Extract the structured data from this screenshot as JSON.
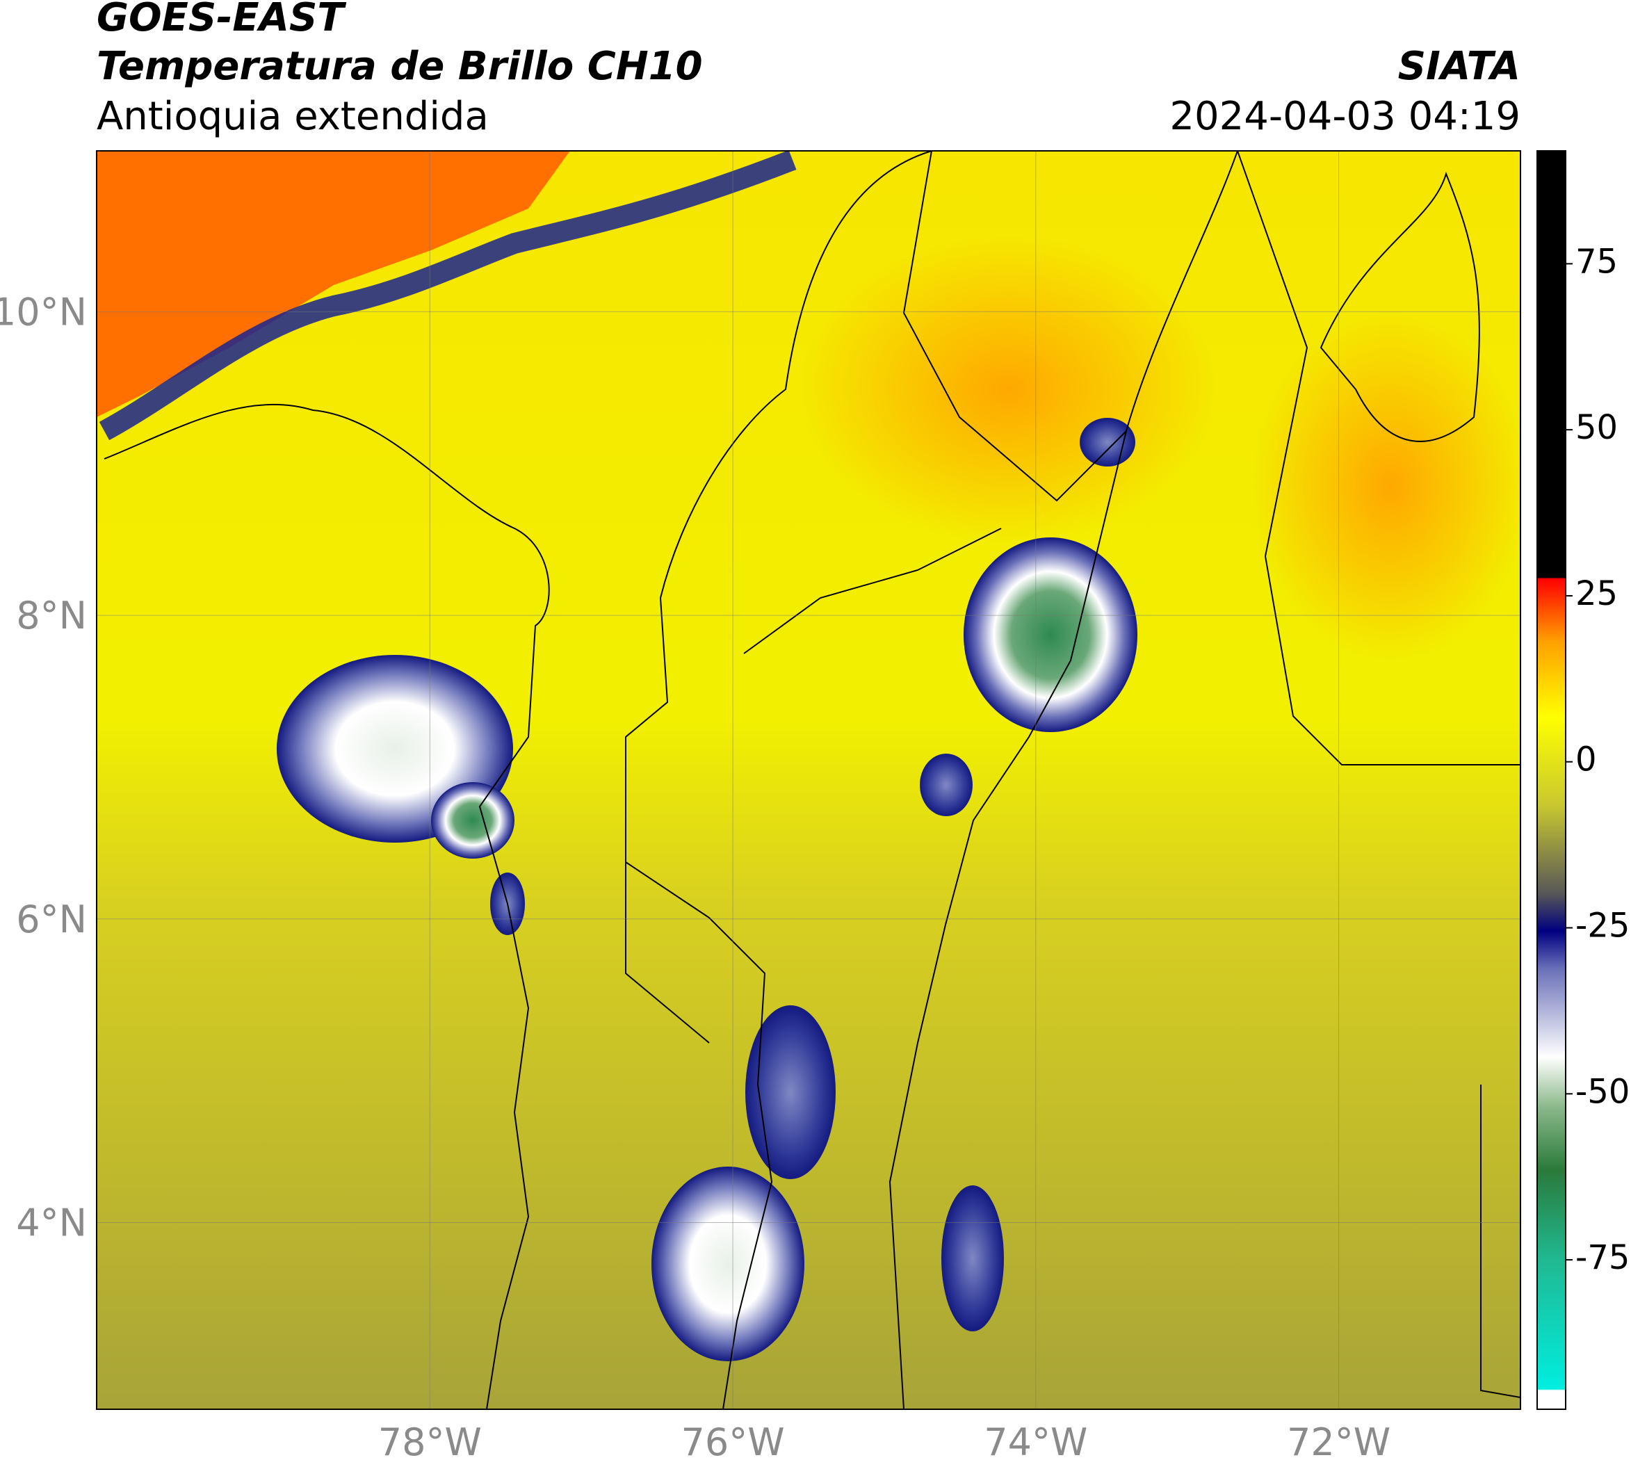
{
  "header": {
    "title": "GOES-EAST",
    "subtitle": "Temperatura de Brillo CH10",
    "region": "Antioquia extendida",
    "source": "SIATA",
    "datetime": "2024-04-03 04:19"
  },
  "map": {
    "xlim": [
      -80.2,
      -70.8
    ],
    "ylim": [
      2.77,
      11.06
    ],
    "xticks": [
      {
        "value": -78,
        "label": "78°W"
      },
      {
        "value": -76,
        "label": "76°W"
      },
      {
        "value": -74,
        "label": "74°W"
      },
      {
        "value": -72,
        "label": "72°W"
      }
    ],
    "yticks": [
      {
        "value": 4,
        "label": "4°N"
      },
      {
        "value": 6,
        "label": "6°N"
      },
      {
        "value": 8,
        "label": "8°N"
      },
      {
        "value": 10,
        "label": "10°N"
      }
    ],
    "grid": true
  },
  "colorbar": {
    "lim": [
      -97.5,
      92
    ],
    "ticks": [
      -75,
      -50,
      -25,
      0,
      25,
      50,
      75
    ]
  }
}
